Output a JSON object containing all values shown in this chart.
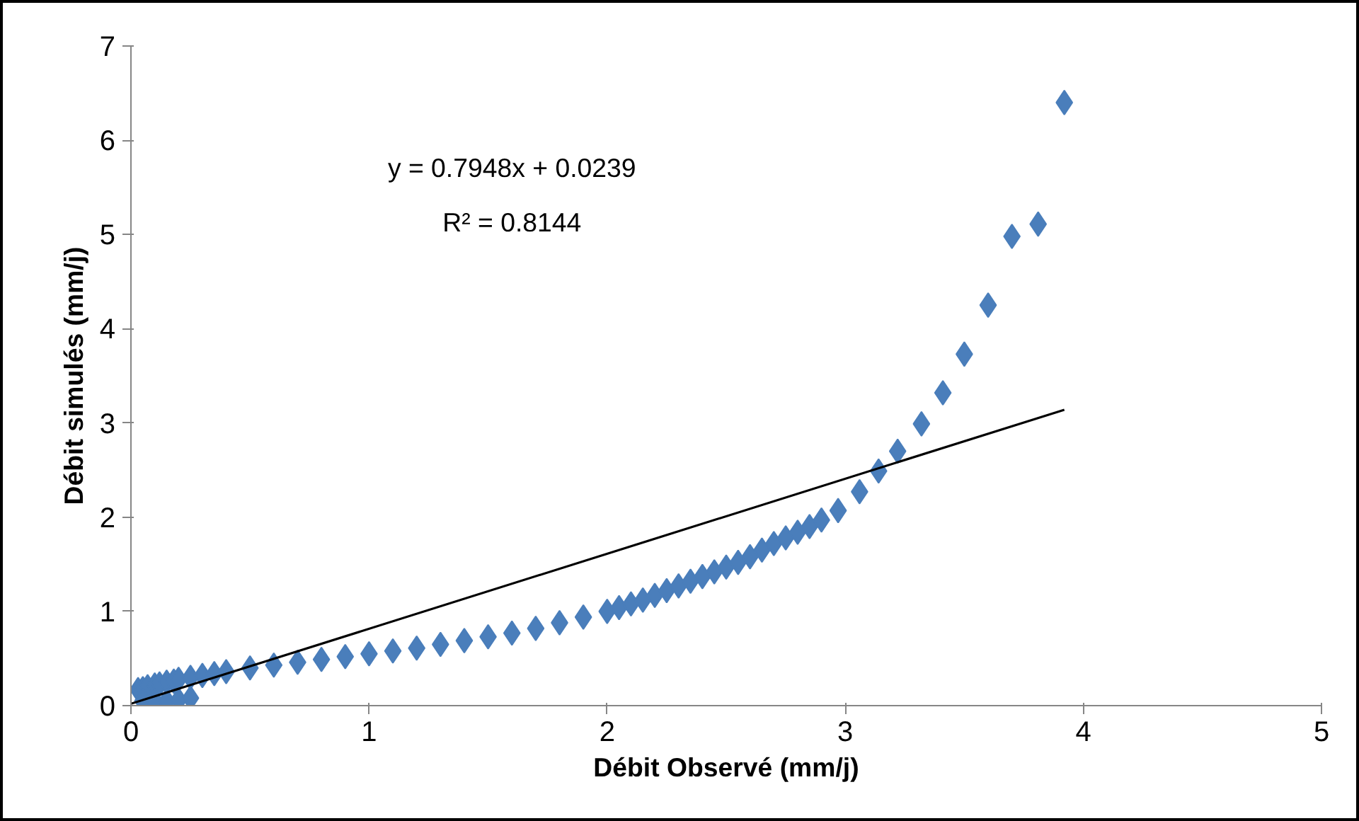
{
  "chart_data": {
    "type": "scatter",
    "xlabel": "Débit Observé (mm/j)",
    "ylabel": "Débit simulés (mm/j)",
    "xlim": [
      0,
      5
    ],
    "ylim": [
      0,
      7
    ],
    "xticks": [
      0,
      1,
      2,
      3,
      4,
      5
    ],
    "yticks": [
      0,
      1,
      2,
      3,
      4,
      5,
      6,
      7
    ],
    "grid": false,
    "annotations": [
      "y = 0.7948x + 0.0239",
      "R² = 0.8144"
    ],
    "series": [
      {
        "color": "#4a7ebb",
        "marker": "diamond",
        "x": [
          0.03,
          0.05,
          0.07,
          0.1,
          0.12,
          0.15,
          0.18,
          0.2,
          0.25,
          0.3,
          0.05,
          0.1,
          0.15,
          0.2,
          0.25,
          0.35,
          0.4,
          0.5,
          0.6,
          0.7,
          0.8,
          0.9,
          1.0,
          1.1,
          1.2,
          1.3,
          1.4,
          1.5,
          1.6,
          1.7,
          1.8,
          1.9,
          2.0,
          2.05,
          2.1,
          2.15,
          2.2,
          2.25,
          2.3,
          2.35,
          2.4,
          2.45,
          2.5,
          2.55,
          2.6,
          2.65,
          2.7,
          2.75,
          2.8,
          2.85,
          2.9,
          2.97,
          3.06,
          3.14,
          3.22,
          3.32,
          3.41,
          3.5,
          3.6,
          3.7,
          3.81,
          3.92
        ],
        "values": [
          0.17,
          0.18,
          0.2,
          0.22,
          0.23,
          0.25,
          0.26,
          0.28,
          0.3,
          0.32,
          0.05,
          0.05,
          0.05,
          0.06,
          0.08,
          0.34,
          0.36,
          0.4,
          0.43,
          0.46,
          0.49,
          0.52,
          0.55,
          0.58,
          0.61,
          0.65,
          0.69,
          0.73,
          0.77,
          0.82,
          0.88,
          0.94,
          1.0,
          1.04,
          1.08,
          1.12,
          1.17,
          1.22,
          1.27,
          1.32,
          1.37,
          1.42,
          1.47,
          1.52,
          1.58,
          1.65,
          1.72,
          1.78,
          1.84,
          1.9,
          1.97,
          2.07,
          2.27,
          2.49,
          2.7,
          2.99,
          3.32,
          3.73,
          4.25,
          4.98,
          5.11,
          6.4
        ]
      },
      {
        "type": "line",
        "marker": "none",
        "color": "#000000",
        "x": [
          0.0,
          3.92
        ],
        "values": [
          0.02,
          3.14
        ]
      }
    ]
  }
}
